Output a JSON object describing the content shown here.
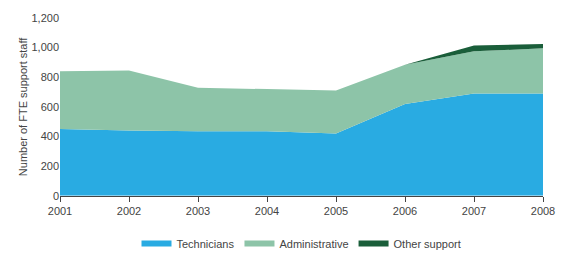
{
  "chart_data": {
    "type": "area",
    "stacked": true,
    "x": [
      2001,
      2002,
      2003,
      2004,
      2005,
      2006,
      2007,
      2008
    ],
    "series": [
      {
        "name": "Technicians",
        "color": "#29ABE2",
        "values": [
          450,
          440,
          435,
          435,
          420,
          620,
          690,
          690
        ]
      },
      {
        "name": "Administrative",
        "color": "#8DC4A8",
        "values": [
          390,
          405,
          295,
          285,
          290,
          265,
          285,
          305
        ]
      },
      {
        "name": "Other support",
        "color": "#1A5E3A",
        "values": [
          0,
          0,
          0,
          0,
          0,
          0,
          40,
          30
        ]
      }
    ],
    "ylabel": "Number of FTE support staff",
    "xlim": [
      2001,
      2008
    ],
    "xticks": [
      2001,
      2002,
      2003,
      2004,
      2005,
      2006,
      2007,
      2008
    ],
    "ylim": [
      0,
      1200
    ],
    "yticks": [
      0,
      200,
      400,
      600,
      800,
      {
        "value": 1000,
        "label": "1,000"
      },
      {
        "value": 1200,
        "label": "1,200"
      }
    ],
    "grid": false,
    "legend": "bottom"
  }
}
